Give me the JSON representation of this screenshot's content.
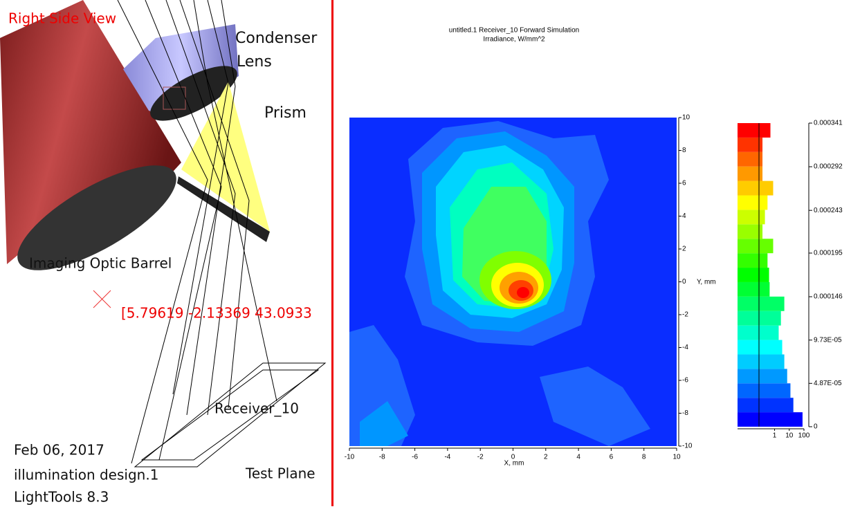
{
  "view": {
    "title": "Right Side View",
    "labels": [
      "Condenser",
      "Lens",
      "Prism",
      "Imaging Optic Barrel",
      "Receiver_10",
      "Test Plane"
    ],
    "coordinate": "[5.79619 -2.13369 43.0933",
    "footer": [
      "Feb 06, 2017",
      "illumination design.1",
      "LightTools 8.3"
    ]
  },
  "plot": {
    "title": "untitled.1 Receiver_10 Forward Simulation",
    "subtitle": "Irradiance, W/mm^2",
    "x_label": "X, mm",
    "y_label": "Y, mm",
    "xlim": [
      -10,
      10
    ],
    "xticks": [
      -10,
      -8,
      -6,
      -4,
      -2,
      0,
      2,
      4,
      6,
      8,
      10
    ],
    "ylim": [
      -10,
      10
    ],
    "yticks": [
      -10,
      -8,
      -6,
      -4,
      -2,
      0,
      2,
      4,
      6,
      8,
      10
    ],
    "colorbar": {
      "lim": [
        0,
        0.000341
      ],
      "ticks": [
        0,
        {
          "value": 4.87e-05,
          "label": "4.87E-05"
        },
        {
          "value": 9.73e-05,
          "label": "9.73E-05"
        },
        0.000146,
        0.000195,
        0.000243,
        0.000292,
        0.000341
      ],
      "histogram": [
        80,
        19,
        12,
        7.2,
        4.6,
        3.3,
        1.9,
        2.7,
        4.6,
        0.46,
        0.42,
        0.33,
        0.8,
        0.15,
        0.22,
        0.33,
        0.8,
        0.15,
        0.15,
        0.15,
        0.52
      ],
      "histogram_xlim": [
        0.003,
        100
      ],
      "histogram_xticks": [
        1,
        10,
        100
      ],
      "log_x": true
    }
  }
}
